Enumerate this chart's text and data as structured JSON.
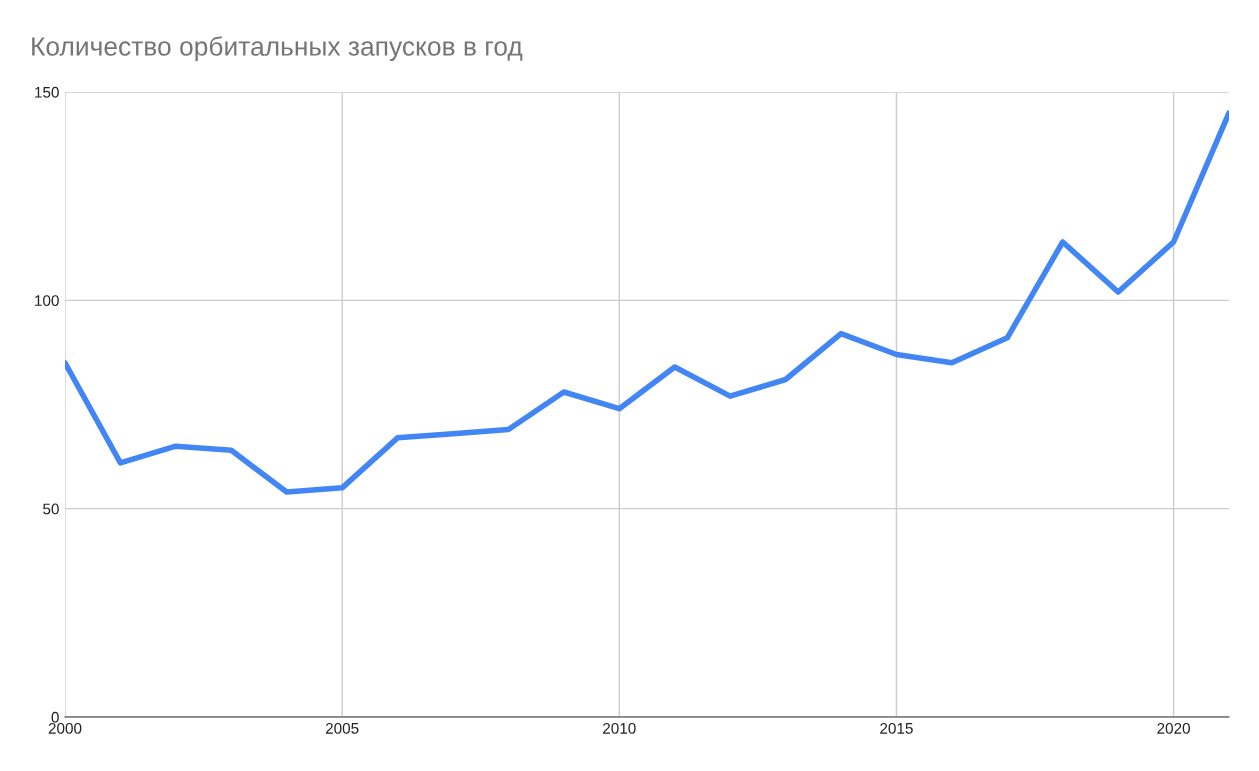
{
  "chart_data": {
    "type": "line",
    "title": "Количество орбитальных запусков в год",
    "x": [
      2000,
      2001,
      2002,
      2003,
      2004,
      2005,
      2006,
      2007,
      2008,
      2009,
      2010,
      2011,
      2012,
      2013,
      2014,
      2015,
      2016,
      2017,
      2018,
      2019,
      2020,
      2021
    ],
    "series": [
      {
        "color": "#4285f4",
        "values": [
          85,
          61,
          65,
          64,
          54,
          55,
          67,
          68,
          69,
          78,
          74,
          84,
          77,
          81,
          92,
          87,
          85,
          91,
          114,
          102,
          114,
          145
        ]
      }
    ],
    "xlim": [
      2000,
      2021
    ],
    "xticks": [
      2000,
      2005,
      2010,
      2015,
      2020
    ],
    "ylim": [
      0,
      150
    ],
    "yticks": [
      0,
      50,
      100,
      150
    ],
    "grid": true,
    "legend": false,
    "marker": "none",
    "line_style": "solid"
  }
}
